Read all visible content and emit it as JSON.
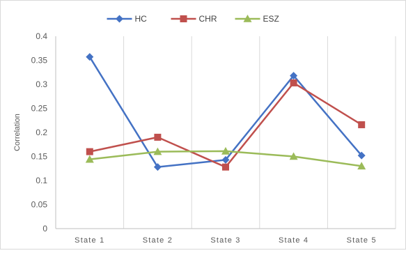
{
  "chart_data": {
    "type": "line",
    "title": "",
    "xlabel": "",
    "ylabel": "Correlation",
    "categories": [
      "State 1",
      "State 2",
      "State 3",
      "State 4",
      "State 5"
    ],
    "ylim": [
      0,
      0.4
    ],
    "yticks": [
      "0",
      "0.05",
      "0.1",
      "0.15",
      "0.2",
      "0.25",
      "0.3",
      "0.35",
      "0.4"
    ],
    "grid": "vertical",
    "legend_position": "top",
    "series": [
      {
        "name": "HC",
        "color": "#4472C4",
        "marker": "diamond",
        "values": [
          0.357,
          0.128,
          0.143,
          0.318,
          0.152
        ]
      },
      {
        "name": "CHR",
        "color": "#C0504D",
        "marker": "square",
        "values": [
          0.16,
          0.19,
          0.128,
          0.303,
          0.216
        ]
      },
      {
        "name": "ESZ",
        "color": "#9BBB59",
        "marker": "triangle",
        "values": [
          0.144,
          0.16,
          0.161,
          0.15,
          0.13
        ]
      }
    ]
  }
}
